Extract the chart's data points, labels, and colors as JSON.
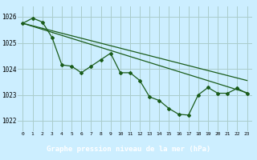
{
  "background_color": "#cceeff",
  "grid_color": "#aacccc",
  "line_color": "#1a5c1a",
  "xlabel": "Graphe pression niveau de la mer (hPa)",
  "xlim": [
    -0.5,
    23.5
  ],
  "ylim": [
    1021.6,
    1026.4
  ],
  "yticks": [
    1022,
    1023,
    1024,
    1025,
    1026
  ],
  "xticks": [
    0,
    1,
    2,
    3,
    4,
    5,
    6,
    7,
    8,
    9,
    10,
    11,
    12,
    13,
    14,
    15,
    16,
    17,
    18,
    19,
    20,
    21,
    22,
    23
  ],
  "line1_x": [
    0,
    23
  ],
  "line1_y": [
    1025.75,
    1023.08
  ],
  "line2_x": [
    0,
    23
  ],
  "line2_y": [
    1025.75,
    1023.55
  ],
  "jagged_x": [
    0,
    1,
    2,
    3,
    4,
    5,
    6,
    7,
    8,
    9,
    10,
    11,
    12,
    13,
    14,
    15,
    16,
    17,
    18,
    19,
    20,
    21,
    22,
    23
  ],
  "jagged_y": [
    1025.75,
    1025.95,
    1025.8,
    1025.2,
    1024.15,
    1024.1,
    1023.85,
    1024.1,
    1024.35,
    1024.6,
    1023.85,
    1023.85,
    1023.55,
    1022.92,
    1022.78,
    1022.47,
    1022.25,
    1022.22,
    1023.0,
    1023.28,
    1023.06,
    1023.06,
    1023.25,
    1023.05
  ],
  "xlabel_bg": "#2d6e2d",
  "xlabel_fg": "white",
  "xlabel_fontsize": 6.5
}
